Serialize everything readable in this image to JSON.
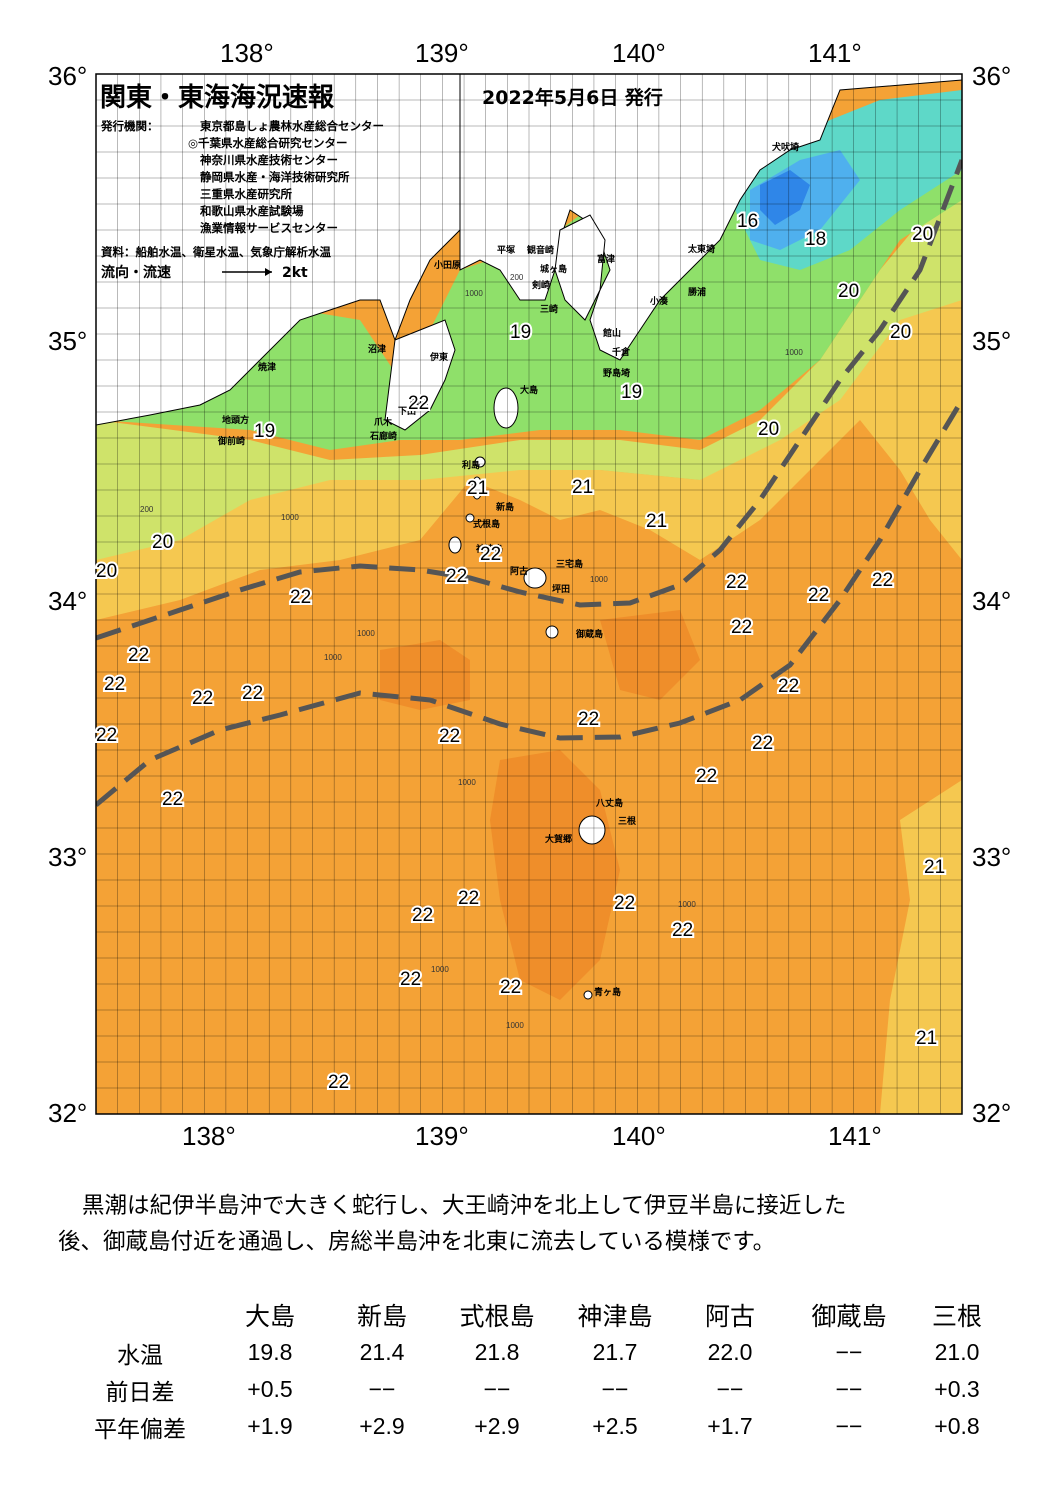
{
  "header": {
    "title": "関東・東海海況速報",
    "issued": "2022年5月6日 発行",
    "agency_label": "発行機関：",
    "agencies": [
      "東京都島しょ農林水産総合センター",
      "◎千葉県水産総合研究センター",
      "神奈川県水産技術センター",
      "静岡県水産・海洋技術研究所",
      "三重県水産研究所",
      "和歌山県水産試験場",
      "漁業情報サービスセンター"
    ],
    "source": "資料：船舶水温、衛星水温、気象庁解析水温",
    "flow_legend": "流向・流速",
    "flow_scale": "2kt"
  },
  "axes": {
    "lon_labels": [
      "138°",
      "139°",
      "140°",
      "141°"
    ],
    "lat_labels": [
      "36°",
      "35°",
      "34°",
      "33°",
      "32°"
    ]
  },
  "places": [
    {
      "label": "犬吠埼"
    },
    {
      "label": "太東埼"
    },
    {
      "label": "勝浦"
    },
    {
      "label": "小湊"
    },
    {
      "label": "館山"
    },
    {
      "label": "千倉"
    },
    {
      "label": "野島埼"
    },
    {
      "label": "富津"
    },
    {
      "label": "観音崎"
    },
    {
      "label": "平塚"
    },
    {
      "label": "城ヶ島"
    },
    {
      "label": "三崎"
    },
    {
      "label": "剣崎"
    },
    {
      "label": "小田原"
    },
    {
      "label": "沼津"
    },
    {
      "label": "伊東"
    },
    {
      "label": "焼津"
    },
    {
      "label": "御前崎"
    },
    {
      "label": "稲取"
    },
    {
      "label": "下田"
    },
    {
      "label": "爪木"
    },
    {
      "label": "石廊崎"
    },
    {
      "label": "大島"
    },
    {
      "label": "利島"
    },
    {
      "label": "新島"
    },
    {
      "label": "式根島"
    },
    {
      "label": "神津島"
    },
    {
      "label": "三宅島"
    },
    {
      "label": "阿古"
    },
    {
      "label": "坪田"
    },
    {
      "label": "御蔵島"
    },
    {
      "label": "八丈島"
    },
    {
      "label": "三根"
    },
    {
      "label": "大賀郷"
    },
    {
      "label": "青ヶ島"
    },
    {
      "label": "地頭方"
    }
  ],
  "isotherm_labels": [
    "16",
    "18",
    "19",
    "19",
    "19",
    "20",
    "20",
    "20",
    "20",
    "20",
    "20",
    "21",
    "21",
    "21",
    "21",
    "21",
    "22",
    "22",
    "22",
    "22",
    "22",
    "22",
    "22",
    "22",
    "22",
    "22",
    "22",
    "22",
    "22",
    "22",
    "22",
    "22",
    "22",
    "22",
    "22",
    "22",
    "22",
    "22",
    "22",
    "22",
    "22",
    "22"
  ],
  "depth_labels": [
    "200",
    "1000",
    "1000",
    "1000",
    "200",
    "1000",
    "1000",
    "1000",
    "1000",
    "1000",
    "1000",
    "1000"
  ],
  "colors": {
    "temp_16": "#2f86e8",
    "temp_17": "#4fb0ee",
    "temp_18": "#5ed8c8",
    "temp_19": "#8fe06a",
    "temp_20": "#cfe36a",
    "temp_21": "#f5c850",
    "temp_22": "#f4a236",
    "temp_22_warm": "#ef8e2a",
    "kuroshio_axis": "#555555",
    "land": "#ffffff"
  },
  "summary": {
    "line1": "黒潮は紀伊半島沖で大きく蛇行し、大王崎沖を北上して伊豆半島に接近した",
    "line2": "後、御蔵島付近を通過し、房総半島沖を北東に流去している模様です。"
  },
  "table": {
    "columns": [
      "大島",
      "新島",
      "式根島",
      "神津島",
      "阿古",
      "御蔵島",
      "三根"
    ],
    "rows": [
      {
        "label": "水温",
        "values": [
          "19.8",
          "21.4",
          "21.8",
          "21.7",
          "22.0",
          "−−",
          "21.0"
        ]
      },
      {
        "label": "前日差",
        "values": [
          "+0.5",
          "−−",
          "−−",
          "−−",
          "−−",
          "−−",
          "+0.3"
        ]
      },
      {
        "label": "平年偏差",
        "values": [
          "+1.9",
          "+2.9",
          "+2.9",
          "+2.5",
          "+1.7",
          "−−",
          "+0.8"
        ]
      }
    ]
  }
}
